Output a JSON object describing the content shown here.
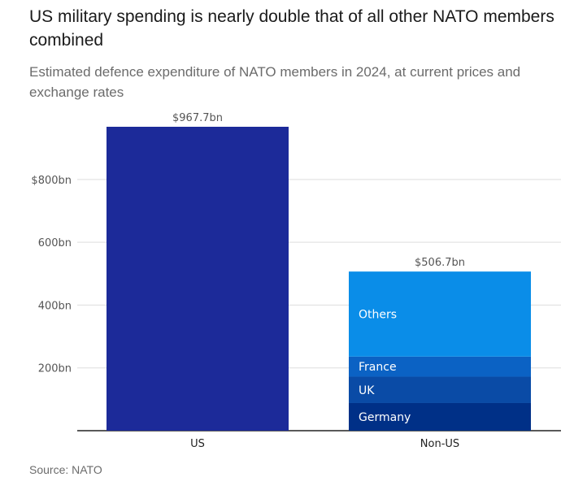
{
  "title": "US military spending is nearly double that of all other NATO members combined",
  "subtitle": "Estimated defence expenditure of NATO members in 2024, at current prices and exchange rates",
  "source": "Source: NATO",
  "chart_data": {
    "type": "bar",
    "stacked": true,
    "categories": [
      "US",
      "Non-US"
    ],
    "ylim": [
      0,
      967.7
    ],
    "yticks": [
      {
        "value": 200,
        "label": "200bn"
      },
      {
        "value": 400,
        "label": "400bn"
      },
      {
        "value": 600,
        "label": "600bn"
      },
      {
        "value": 800,
        "label": "$800bn"
      }
    ],
    "grid": true,
    "series": [
      {
        "category": "US",
        "label": "",
        "value": 967.7,
        "color": "#1c2a99"
      },
      {
        "category": "Non-US",
        "label": "Germany",
        "value": 88,
        "color": "#003087"
      },
      {
        "category": "Non-US",
        "label": "UK",
        "value": 84,
        "color": "#0a4ba6"
      },
      {
        "category": "Non-US",
        "label": "France",
        "value": 64,
        "color": "#0b62c4"
      },
      {
        "category": "Non-US",
        "label": "Others",
        "value": 270.7,
        "color": "#0a8de8"
      }
    ],
    "totals": [
      {
        "category": "US",
        "value": 967.7,
        "label": "$967.7bn"
      },
      {
        "category": "Non-US",
        "value": 506.7,
        "label": "$506.7bn"
      }
    ]
  }
}
